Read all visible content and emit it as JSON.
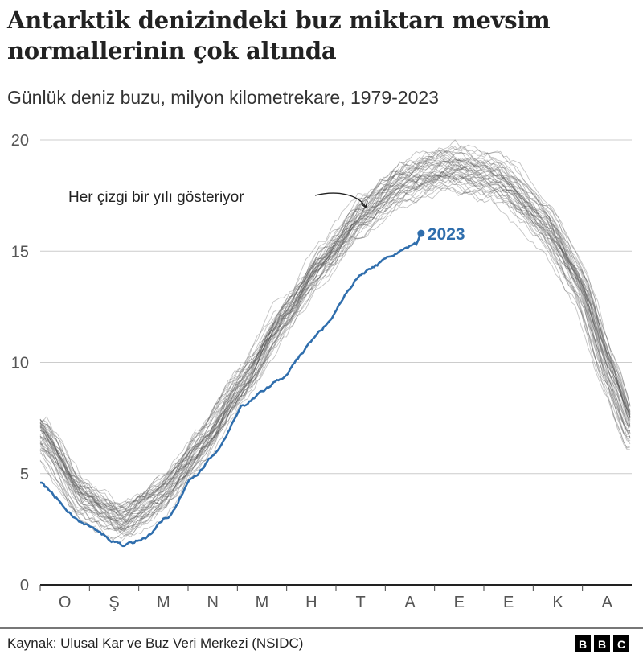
{
  "title": "Antarktik denizindeki buz miktarı mevsim normallerinin çok altında",
  "subtitle": "Günlük deniz buzu, milyon kilometrekare, 1979-2023",
  "source": "Kaynak: Ulusal Kar ve Buz Veri Merkezi (NSIDC)",
  "logo": "BBC",
  "chart_data": {
    "type": "line",
    "title": "Antarktik denizindeki buz miktarı mevsim normallerinin çok altında",
    "subtitle": "Günlük deniz buzu, milyon kilometrekare, 1979-2023",
    "x_unit": "day of year",
    "xlim": [
      0,
      365
    ],
    "ylim": [
      0,
      20
    ],
    "y_ticks": [
      "0",
      "5",
      "10",
      "15",
      "20"
    ],
    "x_tick_labels": [
      "O",
      "Ş",
      "M",
      "N",
      "M",
      "H",
      "T",
      "A",
      "E",
      "E",
      "K",
      "A"
    ],
    "grid": "horizontal",
    "annotation": "Her çizgi bir yılı gösteriyor",
    "other_years_typical": {
      "x": [
        0,
        25,
        50,
        74,
        99,
        124,
        149,
        174,
        198,
        223,
        253,
        283,
        312,
        332,
        352,
        365
      ],
      "y": [
        6.8,
        3.9,
        2.8,
        3.9,
        6.2,
        8.9,
        11.8,
        14.4,
        16.5,
        18.0,
        18.7,
        18.2,
        16.2,
        13.6,
        9.3,
        6.8
      ],
      "year_count": 44,
      "color": "#888888"
    },
    "series": [
      {
        "name": "2023",
        "color": "#2f6ead",
        "x": [
          0,
          25,
          50,
          64,
          79,
          94,
          109,
          124,
          149,
          174,
          198,
          225,
          232,
          235
        ],
        "y": [
          4.6,
          2.8,
          1.8,
          2.06,
          3.1,
          4.8,
          6.0,
          8.0,
          9.3,
          11.5,
          14.0,
          15.1,
          15.3,
          15.8
        ]
      }
    ]
  }
}
